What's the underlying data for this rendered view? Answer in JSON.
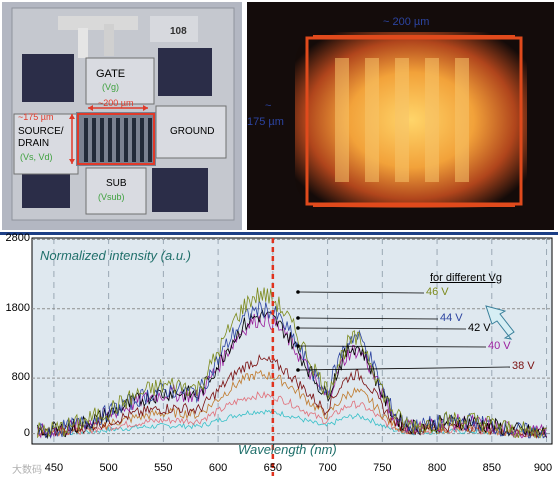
{
  "chip": {
    "id_label": "108",
    "gate_label": "GATE",
    "gate_sub": "(Vg)",
    "width_label": "~200 µm",
    "height_label": "~175 µm",
    "source_label_1": "SOURCE/",
    "source_label_2": "DRAIN",
    "source_sub": "(Vs, Vd)",
    "ground_label": "GROUND",
    "sub_label": "SUB",
    "sub_sub": "(Vsub)"
  },
  "thermal": {
    "width_label": "~ 200 µm",
    "height_label_1": "~",
    "height_label_2": "175 µm"
  },
  "chart_data": {
    "type": "line",
    "title": "",
    "ylabel": "Normalized intensity (a.u.)",
    "xlabel": "Wavelength (nm)",
    "xlim": [
      430,
      905
    ],
    "ylim": [
      -150,
      2820
    ],
    "x_ticks": [
      450,
      500,
      550,
      600,
      650,
      700,
      750,
      800,
      850,
      900
    ],
    "y_ticks": [
      0,
      800,
      1800,
      2800
    ],
    "legend_title": "for different Vg",
    "marker_line_x": 650,
    "series": [
      {
        "name": "46 V",
        "color": "#7c8a1c",
        "peak1": 2000,
        "peak2": 1350
      },
      {
        "name": "44 V",
        "color": "#2c44a0",
        "peak1": 1800,
        "peak2": 1400
      },
      {
        "name": "42 V",
        "color": "#000000",
        "peak1": 1700,
        "peak2": 1250
      },
      {
        "name": "40 V",
        "color": "#9b1f9e",
        "peak1": 1650,
        "peak2": 1200
      },
      {
        "name": "38 V",
        "color": "#7a1010",
        "peak1": 1050,
        "peak2": 850
      },
      {
        "name": "",
        "color": "#c07a2c",
        "peak1": 850,
        "peak2": 600
      },
      {
        "name": "",
        "color": "#e0707a",
        "peak1": 550,
        "peak2": 420
      },
      {
        "name": "",
        "color": "#38c0c8",
        "peak1": 320,
        "peak2": 250
      }
    ]
  },
  "watermark": "大数码"
}
